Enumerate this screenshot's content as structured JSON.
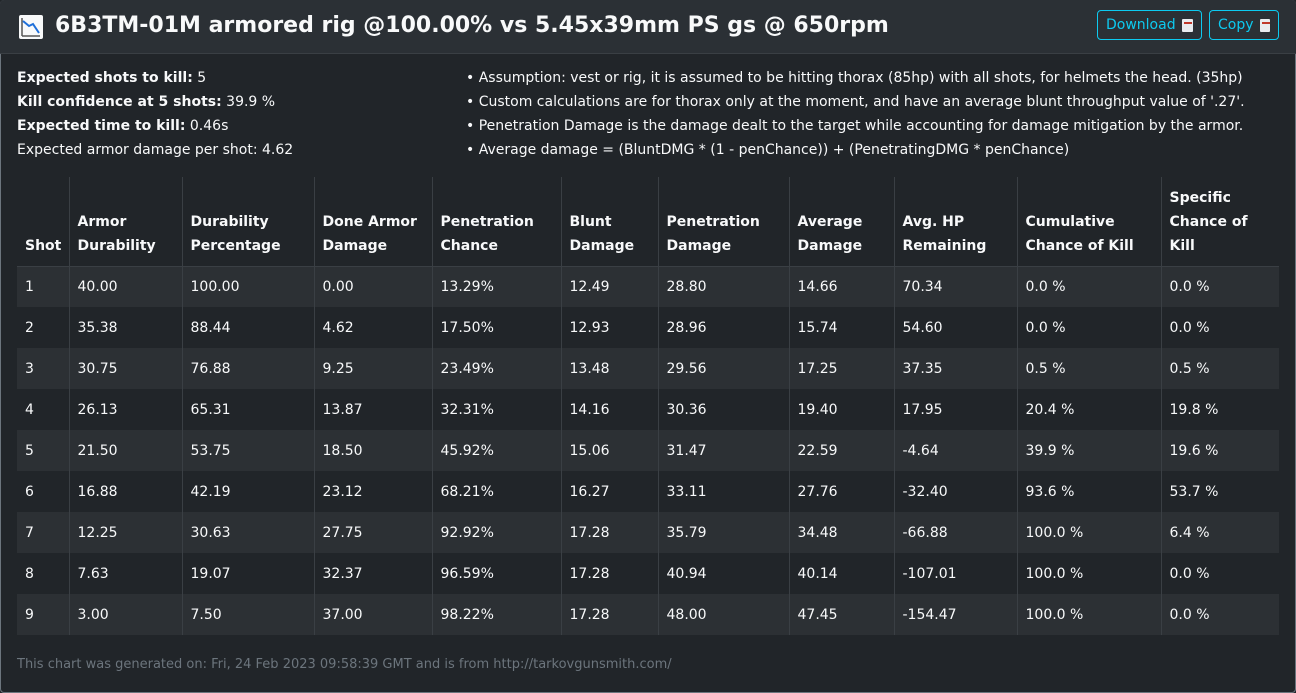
{
  "header": {
    "title": "6B3TM-01M armored rig @100.00% vs 5.45x39mm PS gs @ 650rpm",
    "icon": "chart-decreasing-icon",
    "download_label": "Download",
    "copy_label": "Copy"
  },
  "stats": {
    "shots_label": "Expected shots to kill:",
    "shots_value": "5",
    "confidence_label": "Kill confidence at 5 shots:",
    "confidence_value": "39.9 %",
    "ttk_label": "Expected time to kill:",
    "ttk_value": "0.46s",
    "armor_damage_text": "Expected armor damage per shot: 4.62"
  },
  "notes": [
    "• Assumption: vest or rig, it is assumed to be hitting thorax (85hp) with all shots, for helmets the head. (35hp)",
    "• Custom calculations are for thorax only at the moment, and have an average blunt throughput value of '.27'.",
    "• Penetration Damage is the damage dealt to the target while accounting for damage mitigation by the armor.",
    "• Average damage = (BluntDMG * (1 - penChance)) + (PenetratingDMG * penChance)"
  ],
  "table": {
    "headers": [
      [
        "Shot"
      ],
      [
        "Armor",
        "Durability"
      ],
      [
        "Durability",
        "Percentage"
      ],
      [
        "Done Armor",
        "Damage"
      ],
      [
        "Penetration",
        "Chance"
      ],
      [
        "Blunt",
        "Damage"
      ],
      [
        "Penetration",
        "Damage"
      ],
      [
        "Average",
        "Damage"
      ],
      [
        "Avg. HP",
        "Remaining"
      ],
      [
        "Cumulative",
        "Chance of Kill"
      ],
      [
        "Specific",
        "Chance of",
        "Kill"
      ]
    ],
    "rows": [
      [
        "1",
        "40.00",
        "100.00",
        "0.00",
        "13.29%",
        "12.49",
        "28.80",
        "14.66",
        "70.34",
        "0.0 %",
        "0.0 %"
      ],
      [
        "2",
        "35.38",
        "88.44",
        "4.62",
        "17.50%",
        "12.93",
        "28.96",
        "15.74",
        "54.60",
        "0.0 %",
        "0.0 %"
      ],
      [
        "3",
        "30.75",
        "76.88",
        "9.25",
        "23.49%",
        "13.48",
        "29.56",
        "17.25",
        "37.35",
        "0.5 %",
        "0.5 %"
      ],
      [
        "4",
        "26.13",
        "65.31",
        "13.87",
        "32.31%",
        "14.16",
        "30.36",
        "19.40",
        "17.95",
        "20.4 %",
        "19.8 %"
      ],
      [
        "5",
        "21.50",
        "53.75",
        "18.50",
        "45.92%",
        "15.06",
        "31.47",
        "22.59",
        "-4.64",
        "39.9 %",
        "19.6 %"
      ],
      [
        "6",
        "16.88",
        "42.19",
        "23.12",
        "68.21%",
        "16.27",
        "33.11",
        "27.76",
        "-32.40",
        "93.6 %",
        "53.7 %"
      ],
      [
        "7",
        "12.25",
        "30.63",
        "27.75",
        "92.92%",
        "17.28",
        "35.79",
        "34.48",
        "-66.88",
        "100.0 %",
        "6.4 %"
      ],
      [
        "8",
        "7.63",
        "19.07",
        "32.37",
        "96.59%",
        "17.28",
        "40.94",
        "40.14",
        "-107.01",
        "100.0 %",
        "0.0 %"
      ],
      [
        "9",
        "3.00",
        "7.50",
        "37.00",
        "98.22%",
        "17.28",
        "48.00",
        "47.45",
        "-154.47",
        "100.0 %",
        "0.0 %"
      ]
    ]
  },
  "footer": {
    "text": "This chart was generated on: Fri, 24 Feb 2023 09:58:39 GMT and is from http://tarkovgunsmith.com/"
  },
  "colors": {
    "background": "#212529",
    "accent": "#0dcaf0",
    "row_alt": "#2c3034",
    "muted": "#6c757d"
  }
}
